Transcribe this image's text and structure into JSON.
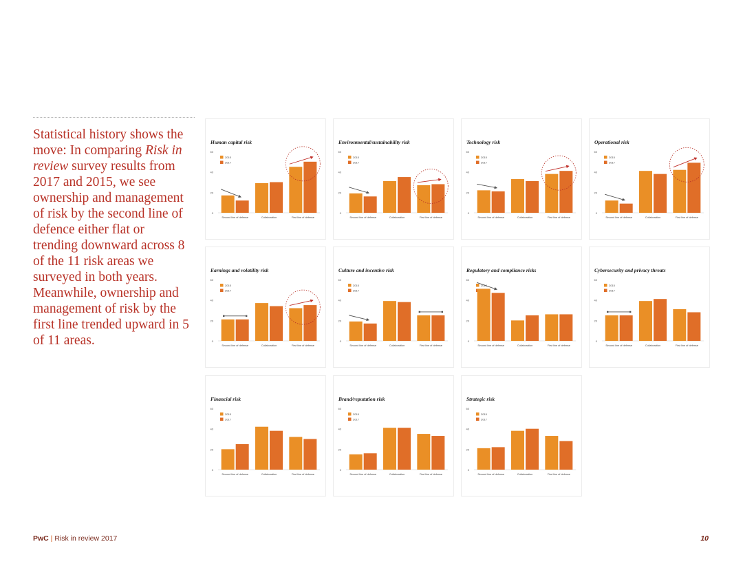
{
  "intro": {
    "p1": "Statistical history shows the move: In comparing ",
    "p2": "Risk in review",
    "p3": " survey results from 2017 and 2015, we see ownership and management of risk by the second line of defence either flat or trending downward across 8 of the 11 risk areas we surveyed in both years. Meanwhile, ownership and management of risk by the first line trended upward in 5 of 11 areas."
  },
  "footer": {
    "brand": "PwC",
    "sep": " | ",
    "title": "Risk in review 2017",
    "page": "10"
  },
  "colors": {
    "s2015": "#ea8f26",
    "s2017": "#e06e28",
    "accent": "#b83227",
    "arrow_up": "#c0312b",
    "arrow_down": "#555555"
  },
  "chart_data": [
    {
      "type": "bar",
      "title": "Human capital risk",
      "categories": [
        "Second line of defense",
        "Collaboration",
        "First line of defense"
      ],
      "series": [
        {
          "name": "2015",
          "values": [
            17,
            29,
            45
          ]
        },
        {
          "name": "2017",
          "values": [
            12,
            30,
            50
          ]
        }
      ],
      "ylim": [
        0,
        60
      ],
      "yticks": [
        "60",
        "40",
        "20",
        "0"
      ],
      "trend": [
        "down",
        "none",
        "up"
      ],
      "circled": 2
    },
    {
      "type": "bar",
      "title": "Environmental/sustainability risk",
      "categories": [
        "Second line of defense",
        "Collaboration",
        "First line of defense"
      ],
      "series": [
        {
          "name": "2015",
          "values": [
            19,
            31,
            27
          ]
        },
        {
          "name": "2017",
          "values": [
            16,
            35,
            28
          ]
        }
      ],
      "ylim": [
        0,
        60
      ],
      "yticks": [
        "60",
        "40",
        "20",
        "0"
      ],
      "trend": [
        "down",
        "none",
        "up"
      ],
      "circled": 2
    },
    {
      "type": "bar",
      "title": "Technology risk",
      "categories": [
        "Second line of defense",
        "Collaboration",
        "First line of defense"
      ],
      "series": [
        {
          "name": "2015",
          "values": [
            22,
            33,
            38
          ]
        },
        {
          "name": "2017",
          "values": [
            21,
            31,
            41
          ]
        }
      ],
      "ylim": [
        0,
        60
      ],
      "yticks": [
        "60",
        "40",
        "20",
        "0"
      ],
      "trend": [
        "down",
        "none",
        "up"
      ],
      "circled": 2
    },
    {
      "type": "bar",
      "title": "Operational risk",
      "categories": [
        "Second line of defense",
        "Collaboration",
        "First line of defense"
      ],
      "series": [
        {
          "name": "2015",
          "values": [
            12,
            41,
            42
          ]
        },
        {
          "name": "2017",
          "values": [
            9,
            38,
            49
          ]
        }
      ],
      "ylim": [
        0,
        60
      ],
      "yticks": [
        "60",
        "40",
        "20",
        "0"
      ],
      "trend": [
        "down",
        "none",
        "up"
      ],
      "circled": 2
    },
    {
      "type": "bar",
      "title": "Earnings and volatility risk",
      "categories": [
        "Second line of defense",
        "Collaboration",
        "First line of defense"
      ],
      "series": [
        {
          "name": "2015",
          "values": [
            21,
            37,
            32
          ]
        },
        {
          "name": "2017",
          "values": [
            21,
            34,
            35
          ]
        }
      ],
      "ylim": [
        0,
        60
      ],
      "yticks": [
        "60",
        "40",
        "20",
        "0"
      ],
      "trend": [
        "flat",
        "none",
        "up"
      ],
      "circled": 2
    },
    {
      "type": "bar",
      "title": "Culture and incentive risk",
      "categories": [
        "Second line of defense",
        "Collaboration",
        "First line of defense"
      ],
      "series": [
        {
          "name": "2015",
          "values": [
            19,
            39,
            25
          ]
        },
        {
          "name": "2017",
          "values": [
            17,
            38,
            25
          ]
        }
      ],
      "ylim": [
        0,
        60
      ],
      "yticks": [
        "60",
        "40",
        "20",
        "0"
      ],
      "trend": [
        "down",
        "none",
        "flat"
      ],
      "circled": -1
    },
    {
      "type": "bar",
      "title": "Regulatory and compliance risks",
      "categories": [
        "Second line of defense",
        "Collaboration",
        "First line of defense"
      ],
      "series": [
        {
          "name": "2015",
          "values": [
            51,
            20,
            26
          ]
        },
        {
          "name": "2017",
          "values": [
            47,
            25,
            26
          ]
        }
      ],
      "ylim": [
        0,
        60
      ],
      "yticks": [
        "60",
        "40",
        "20",
        "0"
      ],
      "trend": [
        "down",
        "none",
        "none"
      ],
      "circled": -1
    },
    {
      "type": "bar",
      "title": "Cybersecurity and privacy threats",
      "categories": [
        "Second line of defense",
        "Collaboration",
        "First line of defense"
      ],
      "series": [
        {
          "name": "2015",
          "values": [
            25,
            39,
            31
          ]
        },
        {
          "name": "2017",
          "values": [
            25,
            41,
            28
          ]
        }
      ],
      "ylim": [
        0,
        60
      ],
      "yticks": [
        "60",
        "40",
        "20",
        "0"
      ],
      "trend": [
        "flat",
        "none",
        "none"
      ],
      "circled": -1
    },
    {
      "type": "bar",
      "title": "Financial risk",
      "categories": [
        "Second line of defense",
        "Collaboration",
        "First line of defense"
      ],
      "series": [
        {
          "name": "2015",
          "values": [
            20,
            42,
            32
          ]
        },
        {
          "name": "2017",
          "values": [
            25,
            38,
            30
          ]
        }
      ],
      "ylim": [
        0,
        60
      ],
      "yticks": [
        "60",
        "40",
        "20",
        "0"
      ],
      "trend": [
        "none",
        "none",
        "none"
      ],
      "circled": -1
    },
    {
      "type": "bar",
      "title": "Brand/reputation risk",
      "categories": [
        "Second line of defense",
        "Collaboration",
        "First line of defense"
      ],
      "series": [
        {
          "name": "2015",
          "values": [
            15,
            41,
            35
          ]
        },
        {
          "name": "2017",
          "values": [
            16,
            41,
            33
          ]
        }
      ],
      "ylim": [
        0,
        60
      ],
      "yticks": [
        "60",
        "40",
        "20",
        "0"
      ],
      "trend": [
        "none",
        "none",
        "none"
      ],
      "circled": -1
    },
    {
      "type": "bar",
      "title": "Strategic risk",
      "categories": [
        "Second line of defense",
        "Collaboration",
        "First line of defense"
      ],
      "series": [
        {
          "name": "2015",
          "values": [
            21,
            38,
            33
          ]
        },
        {
          "name": "2017",
          "values": [
            22,
            40,
            28
          ]
        }
      ],
      "ylim": [
        0,
        60
      ],
      "yticks": [
        "60",
        "40",
        "20",
        "0"
      ],
      "trend": [
        "none",
        "none",
        "none"
      ],
      "circled": -1
    }
  ]
}
